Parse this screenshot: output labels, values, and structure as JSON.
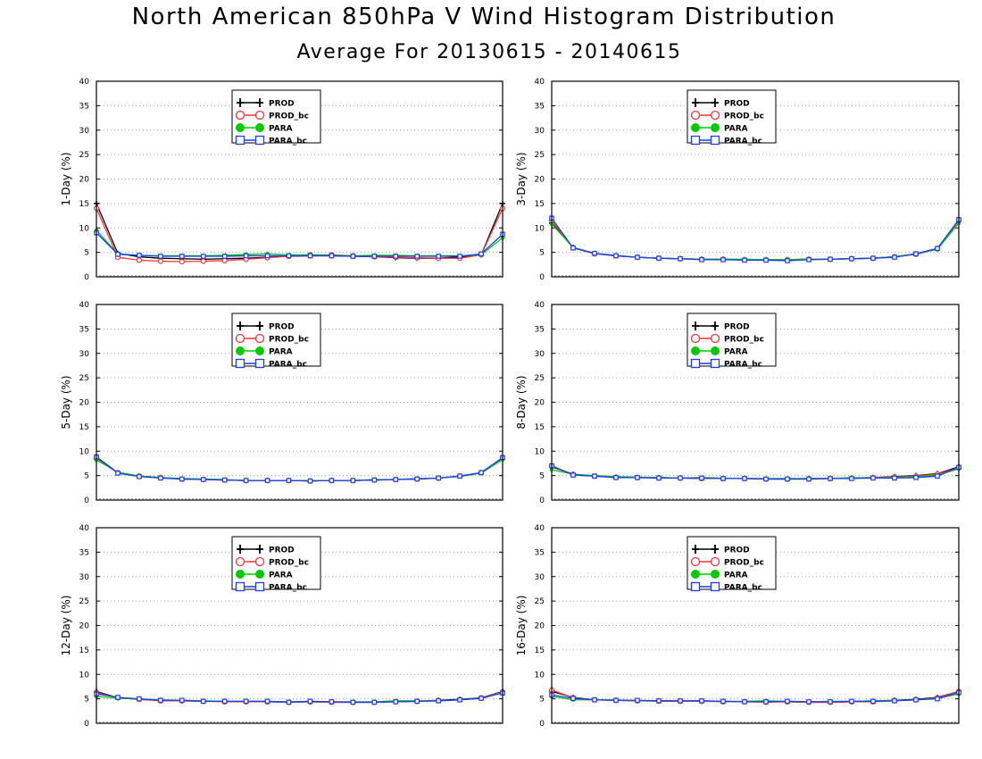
{
  "title": "North American 850hPa V Wind Histogram Distribution",
  "subtitle": "Average For 20130615 - 20140615",
  "colors": {
    "PROD": "#000000",
    "PROD_bc": "#ff3333",
    "PARA": "#00cc00",
    "PARA_bc": "#1a3cff"
  },
  "chart_data": [
    {
      "type": "line",
      "ylabel": "1-Day (%)",
      "ylim": [
        0,
        40
      ],
      "yticks": [
        "0",
        "5",
        "10",
        "15",
        "20",
        "25",
        "30",
        "35",
        "40"
      ],
      "grid": true,
      "legend_position": "top-center",
      "series": [
        {
          "name": "PROD",
          "values": [
            15.0,
            4.8,
            4.1,
            3.8,
            3.7,
            3.6,
            3.7,
            3.8,
            4.0,
            4.2,
            4.3,
            4.3,
            4.2,
            4.1,
            3.9,
            3.8,
            3.8,
            4.1,
            4.5,
            15.0
          ]
        },
        {
          "name": "PROD_bc",
          "values": [
            14.0,
            4.0,
            3.4,
            3.2,
            3.1,
            3.2,
            3.3,
            3.6,
            3.9,
            4.2,
            4.5,
            4.5,
            4.3,
            4.1,
            4.0,
            3.9,
            3.8,
            3.8,
            4.5,
            14.0
          ]
        },
        {
          "name": "PARA",
          "values": [
            9.5,
            4.7,
            4.4,
            4.3,
            4.3,
            4.3,
            4.4,
            4.6,
            4.7,
            4.5,
            4.5,
            4.4,
            4.3,
            4.4,
            4.4,
            4.3,
            4.3,
            4.3,
            4.5,
            8.0
          ]
        },
        {
          "name": "PARA_bc",
          "values": [
            9.0,
            4.6,
            4.4,
            4.2,
            4.2,
            4.2,
            4.2,
            4.3,
            4.3,
            4.3,
            4.3,
            4.3,
            4.2,
            4.2,
            4.2,
            4.2,
            4.2,
            4.2,
            4.7,
            8.7
          ]
        }
      ]
    },
    {
      "type": "line",
      "ylabel": "3-Day (%)",
      "ylim": [
        0,
        40
      ],
      "yticks": [
        "0",
        "5",
        "10",
        "15",
        "20",
        "25",
        "30",
        "35",
        "40"
      ],
      "grid": true,
      "legend_position": "top-center",
      "series": [
        {
          "name": "PROD",
          "values": [
            11.0,
            6.0,
            4.8,
            4.3,
            4.0,
            3.8,
            3.7,
            3.6,
            3.6,
            3.5,
            3.5,
            3.5,
            3.6,
            3.6,
            3.7,
            3.8,
            4.1,
            4.7,
            5.8,
            11.5
          ]
        },
        {
          "name": "PROD_bc",
          "values": [
            11.5,
            5.9,
            4.7,
            4.3,
            4.0,
            3.8,
            3.7,
            3.6,
            3.6,
            3.5,
            3.5,
            3.5,
            3.6,
            3.6,
            3.7,
            3.8,
            4.1,
            4.6,
            5.7,
            11.5
          ]
        },
        {
          "name": "PARA",
          "values": [
            10.8,
            6.0,
            4.8,
            4.4,
            4.0,
            3.8,
            3.7,
            3.6,
            3.6,
            3.6,
            3.5,
            3.5,
            3.6,
            3.6,
            3.7,
            3.8,
            4.1,
            4.7,
            5.6,
            11.0
          ]
        },
        {
          "name": "PARA_bc",
          "values": [
            12.0,
            5.9,
            4.8,
            4.3,
            4.0,
            3.8,
            3.7,
            3.5,
            3.5,
            3.4,
            3.4,
            3.3,
            3.5,
            3.6,
            3.7,
            3.8,
            4.0,
            4.7,
            5.8,
            11.7
          ]
        }
      ]
    },
    {
      "type": "line",
      "ylabel": "5-Day (%)",
      "ylim": [
        0,
        40
      ],
      "yticks": [
        "0",
        "5",
        "10",
        "15",
        "20",
        "25",
        "30",
        "35",
        "40"
      ],
      "grid": true,
      "legend_position": "top-center",
      "series": [
        {
          "name": "PROD",
          "values": [
            8.8,
            5.6,
            4.9,
            4.6,
            4.3,
            4.2,
            4.1,
            4.0,
            4.0,
            4.0,
            3.9,
            4.0,
            4.0,
            4.1,
            4.2,
            4.3,
            4.5,
            4.9,
            5.6,
            8.6
          ]
        },
        {
          "name": "PROD_bc",
          "values": [
            8.5,
            5.6,
            4.9,
            4.6,
            4.3,
            4.2,
            4.1,
            4.0,
            4.0,
            4.0,
            3.9,
            4.0,
            4.0,
            4.1,
            4.2,
            4.3,
            4.5,
            4.9,
            5.6,
            8.6
          ]
        },
        {
          "name": "PARA",
          "values": [
            8.2,
            5.7,
            4.9,
            4.6,
            4.4,
            4.3,
            4.2,
            4.0,
            4.0,
            4.0,
            4.0,
            4.0,
            4.0,
            4.2,
            4.2,
            4.4,
            4.5,
            4.8,
            5.5,
            8.3
          ]
        },
        {
          "name": "PARA_bc",
          "values": [
            8.8,
            5.5,
            4.8,
            4.5,
            4.3,
            4.2,
            4.1,
            4.0,
            4.0,
            4.0,
            3.9,
            4.0,
            4.0,
            4.1,
            4.2,
            4.3,
            4.5,
            4.9,
            5.6,
            8.7
          ]
        }
      ]
    },
    {
      "type": "line",
      "ylabel": "8-Day (%)",
      "ylim": [
        0,
        40
      ],
      "yticks": [
        "0",
        "5",
        "10",
        "15",
        "20",
        "25",
        "30",
        "35",
        "40"
      ],
      "grid": true,
      "legend_position": "top-center",
      "series": [
        {
          "name": "PROD",
          "values": [
            6.8,
            5.3,
            4.9,
            4.7,
            4.6,
            4.6,
            4.5,
            4.4,
            4.4,
            4.4,
            4.3,
            4.3,
            4.4,
            4.4,
            4.5,
            4.6,
            4.8,
            5.0,
            5.4,
            6.8
          ]
        },
        {
          "name": "PROD_bc",
          "values": [
            7.0,
            5.2,
            4.9,
            4.6,
            4.6,
            4.5,
            4.5,
            4.4,
            4.4,
            4.4,
            4.3,
            4.3,
            4.3,
            4.4,
            4.5,
            4.6,
            4.7,
            4.9,
            5.3,
            6.6
          ]
        },
        {
          "name": "PARA",
          "values": [
            6.2,
            5.3,
            5.0,
            4.8,
            4.7,
            4.6,
            4.5,
            4.6,
            4.5,
            4.4,
            4.4,
            4.4,
            4.4,
            4.4,
            4.6,
            4.5,
            4.6,
            4.8,
            5.1,
            6.4
          ]
        },
        {
          "name": "PARA_bc",
          "values": [
            7.0,
            5.1,
            4.9,
            4.6,
            4.6,
            4.5,
            4.5,
            4.5,
            4.4,
            4.4,
            4.3,
            4.3,
            4.3,
            4.4,
            4.4,
            4.5,
            4.5,
            4.6,
            4.9,
            6.7
          ]
        }
      ]
    },
    {
      "type": "line",
      "ylabel": "12-Day (%)",
      "ylim": [
        0,
        40
      ],
      "yticks": [
        "0",
        "5",
        "10",
        "15",
        "20",
        "25",
        "30",
        "35",
        "40"
      ],
      "grid": true,
      "legend_position": "top-center",
      "series": [
        {
          "name": "PROD",
          "values": [
            6.5,
            5.2,
            4.9,
            4.7,
            4.6,
            4.5,
            4.5,
            4.4,
            4.4,
            4.3,
            4.4,
            4.3,
            4.3,
            4.3,
            4.4,
            4.5,
            4.7,
            4.9,
            5.2,
            6.5
          ]
        },
        {
          "name": "PROD_bc",
          "values": [
            6.3,
            5.2,
            4.9,
            4.6,
            4.6,
            4.5,
            4.4,
            4.4,
            4.4,
            4.3,
            4.4,
            4.3,
            4.3,
            4.3,
            4.4,
            4.5,
            4.6,
            4.8,
            5.2,
            6.4
          ]
        },
        {
          "name": "PARA",
          "values": [
            5.5,
            5.1,
            5.0,
            4.8,
            4.7,
            4.6,
            4.5,
            4.5,
            4.5,
            4.4,
            4.5,
            4.4,
            4.4,
            4.4,
            4.6,
            4.6,
            4.6,
            4.8,
            5.1,
            6.3
          ]
        },
        {
          "name": "PARA_bc",
          "values": [
            6.0,
            5.3,
            5.0,
            4.7,
            4.7,
            4.5,
            4.5,
            4.5,
            4.5,
            4.3,
            4.5,
            4.4,
            4.3,
            4.3,
            4.4,
            4.5,
            4.6,
            4.8,
            5.1,
            6.2
          ]
        }
      ]
    },
    {
      "type": "line",
      "ylabel": "16-Day (%)",
      "ylim": [
        0,
        40
      ],
      "yticks": [
        "0",
        "5",
        "10",
        "15",
        "20",
        "25",
        "30",
        "35",
        "40"
      ],
      "grid": true,
      "legend_position": "top-center",
      "series": [
        {
          "name": "PROD",
          "values": [
            6.5,
            5.3,
            4.8,
            4.7,
            4.6,
            4.6,
            4.5,
            4.5,
            4.5,
            4.4,
            4.4,
            4.4,
            4.3,
            4.3,
            4.4,
            4.5,
            4.7,
            4.9,
            5.3,
            6.5
          ]
        },
        {
          "name": "PROD_bc",
          "values": [
            6.8,
            5.2,
            4.8,
            4.7,
            4.6,
            4.5,
            4.5,
            4.5,
            4.4,
            4.4,
            4.3,
            4.4,
            4.3,
            4.3,
            4.4,
            4.4,
            4.6,
            4.8,
            5.2,
            6.5
          ]
        },
        {
          "name": "PARA",
          "values": [
            5.5,
            4.8,
            4.8,
            4.8,
            4.6,
            4.6,
            4.6,
            4.6,
            4.5,
            4.5,
            4.6,
            4.5,
            4.4,
            4.5,
            4.5,
            4.6,
            4.7,
            4.8,
            5.1,
            6.0
          ]
        },
        {
          "name": "PARA_bc",
          "values": [
            5.8,
            5.1,
            4.8,
            4.7,
            4.7,
            4.6,
            4.6,
            4.6,
            4.5,
            4.4,
            4.4,
            4.5,
            4.4,
            4.4,
            4.5,
            4.5,
            4.6,
            4.8,
            5.0,
            6.3
          ]
        }
      ]
    }
  ]
}
